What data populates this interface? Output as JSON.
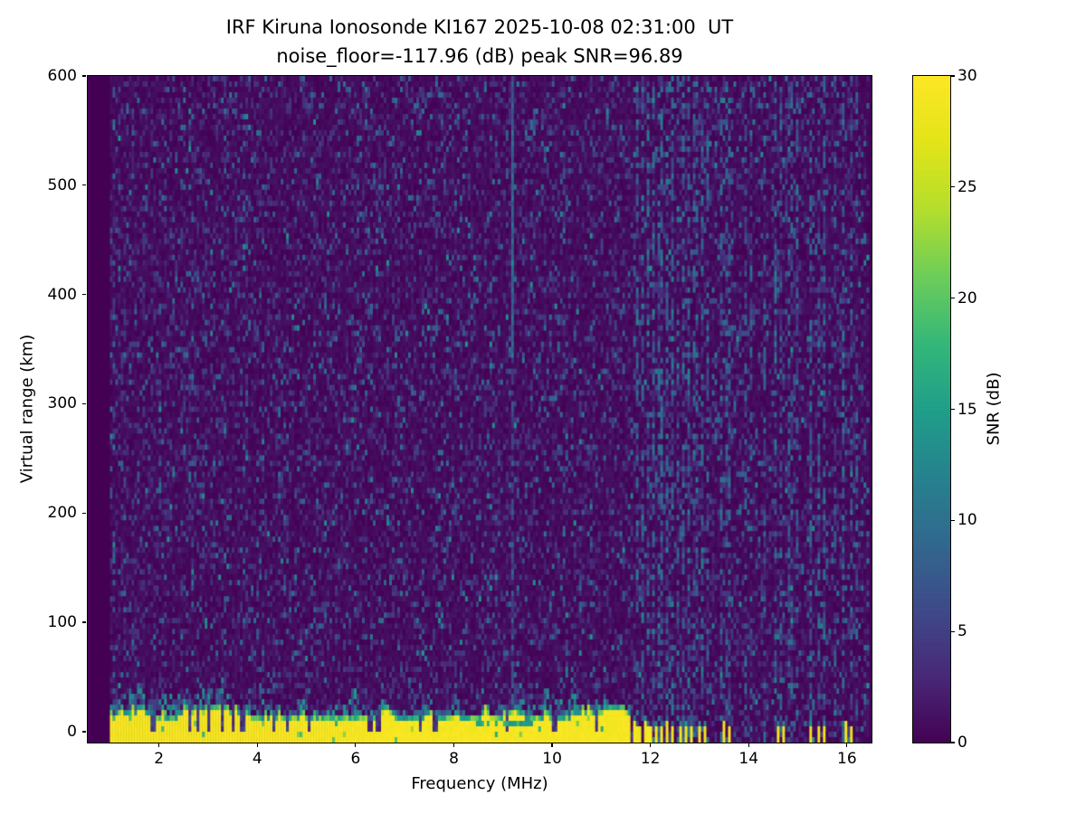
{
  "chart_data": {
    "type": "heatmap",
    "title": "IRF Kiruna Ionosonde KI167 2025-10-08 02:31:00  UT",
    "subtitle": "noise_floor=-117.96 (dB) peak SNR=96.89",
    "station": "IRF Kiruna Ionosonde KI167",
    "timestamp_ut": "2025-10-08 02:31:00",
    "noise_floor_db": -117.96,
    "peak_snr_db": 96.89,
    "xlabel": "Frequency (MHz)",
    "ylabel": "Virtual range (km)",
    "xlim": [
      0.55,
      16.5
    ],
    "ylim": [
      -10,
      600
    ],
    "x_ticks": [
      2,
      4,
      6,
      8,
      10,
      12,
      14,
      16
    ],
    "y_ticks": [
      0,
      100,
      200,
      300,
      400,
      500,
      600
    ],
    "freq_range_mhz": [
      1.0,
      16.45
    ],
    "colormap": "viridis",
    "colorbar": {
      "label": "SNR (dB)",
      "vmin": 0,
      "vmax": 30,
      "ticks": [
        0,
        5,
        10,
        15,
        20,
        25,
        30
      ]
    },
    "background_noise": {
      "lit_fraction": 0.3,
      "typical_snr_db": [
        1,
        10
      ],
      "speckle_max_db": 14
    },
    "ground_echo": {
      "freq_span": [
        1.0,
        11.62
      ],
      "solid_top_km": [
        9,
        19
      ],
      "fringe_top_km": [
        16,
        42
      ],
      "snr_db": 30,
      "notches_mhz": [
        1.88,
        2.62,
        2.78,
        3.02,
        3.3,
        3.52,
        3.7,
        4.32,
        4.6,
        5.05,
        6.3,
        6.46,
        7.3,
        7.62,
        9.1,
        10.05,
        10.9
      ],
      "plumes_mhz": [
        1.2,
        1.6,
        2.1,
        2.55,
        3.35,
        3.8,
        4.4,
        4.9,
        5.45,
        5.95,
        6.6,
        7.5,
        8.05,
        8.6,
        9.3,
        9.9,
        10.45,
        11.1
      ],
      "band_streak": {
        "freq_span": [
          8.25,
          9.65
        ],
        "km_span": [
          4,
          9
        ]
      }
    },
    "interference_line": {
      "freq_mhz": 9.18,
      "snr_db": 10,
      "strong_above_km": 340
    },
    "rfi_stripes": [
      {
        "f": 11.72,
        "s": 0.6
      },
      {
        "f": 11.84,
        "s": 0.7
      },
      {
        "f": 11.96,
        "s": 0.6
      },
      {
        "f": 12.08,
        "s": 0.7
      },
      {
        "f": 12.2,
        "s": 0.6
      },
      {
        "f": 12.32,
        "s": 0.7
      },
      {
        "f": 12.44,
        "s": 0.6
      },
      {
        "f": 12.56,
        "s": 0.7
      },
      {
        "f": 12.68,
        "s": 0.6
      },
      {
        "f": 12.8,
        "s": 0.7
      },
      {
        "f": 12.92,
        "s": 0.6
      },
      {
        "f": 13.04,
        "s": 0.6
      },
      {
        "f": 13.16,
        "s": 0.5
      },
      {
        "f": 13.45,
        "s": 0.5
      },
      {
        "f": 13.58,
        "s": 0.5
      },
      {
        "f": 13.95,
        "s": 0.4
      },
      {
        "f": 14.05,
        "s": 0.5
      },
      {
        "f": 14.35,
        "s": 0.5
      },
      {
        "f": 14.55,
        "s": 0.6
      },
      {
        "f": 14.68,
        "s": 0.5
      },
      {
        "f": 14.85,
        "s": 0.5
      },
      {
        "f": 15.0,
        "s": 0.5
      },
      {
        "f": 15.28,
        "s": 0.6
      },
      {
        "f": 15.42,
        "s": 0.5
      },
      {
        "f": 15.56,
        "s": 0.6
      },
      {
        "f": 15.78,
        "s": 0.4
      },
      {
        "f": 15.95,
        "s": 0.6
      },
      {
        "f": 16.08,
        "s": 0.5
      },
      {
        "f": 16.2,
        "s": 0.4
      }
    ],
    "bottom_bursts": [
      {
        "f": 11.68,
        "h": 9
      },
      {
        "f": 11.76,
        "h": 5
      },
      {
        "f": 11.88,
        "h": 8
      },
      {
        "f": 11.98,
        "h": 4
      },
      {
        "f": 12.1,
        "h": 7
      },
      {
        "f": 12.22,
        "h": 3
      },
      {
        "f": 12.34,
        "h": 8
      },
      {
        "f": 12.46,
        "h": 5
      },
      {
        "f": 12.6,
        "h": 7
      },
      {
        "f": 12.72,
        "h": 4
      },
      {
        "f": 12.86,
        "h": 6
      },
      {
        "f": 12.98,
        "h": 3
      },
      {
        "f": 13.1,
        "h": 6
      },
      {
        "f": 13.48,
        "h": 8
      },
      {
        "f": 13.6,
        "h": 6
      },
      {
        "f": 14.6,
        "h": 7
      },
      {
        "f": 14.7,
        "h": 4
      },
      {
        "f": 15.28,
        "h": 6
      },
      {
        "f": 15.44,
        "h": 4
      },
      {
        "f": 15.56,
        "h": 7
      },
      {
        "f": 15.98,
        "h": 8
      },
      {
        "f": 16.08,
        "h": 5
      }
    ]
  }
}
